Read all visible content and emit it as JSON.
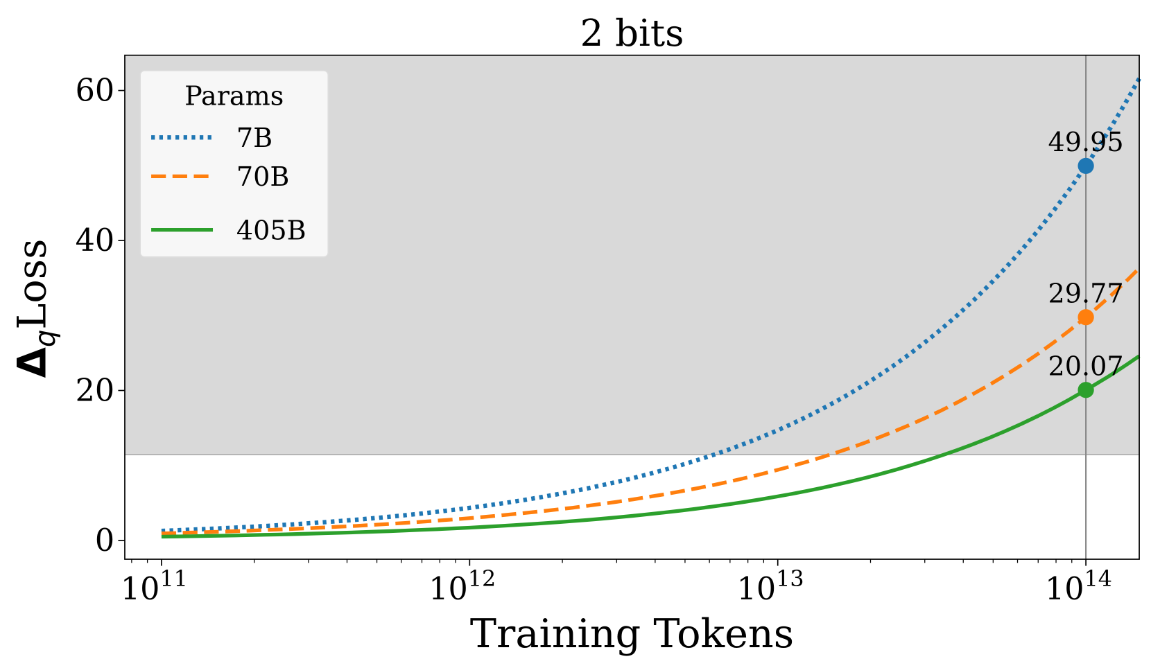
{
  "chart_data": {
    "type": "line",
    "title": "2 bits",
    "xlabel": "Training Tokens",
    "ylabel_main": "Loss",
    "ylabel_delta": "Δ",
    "ylabel_sub": "q",
    "x_scale": "log",
    "xlim": [
      76000000000.0,
      149000000000000.0
    ],
    "ylim": [
      -2.5,
      64.7
    ],
    "x_ticks": [
      100000000000.0,
      1000000000000.0,
      10000000000000.0,
      100000000000000.0
    ],
    "x_tick_labels": [
      {
        "base": "10",
        "exp": "11"
      },
      {
        "base": "10",
        "exp": "12"
      },
      {
        "base": "10",
        "exp": "13"
      },
      {
        "base": "10",
        "exp": "14"
      }
    ],
    "y_ticks": [
      0,
      20,
      40,
      60
    ],
    "y_tick_labels": [
      "0",
      "20",
      "40",
      "60"
    ],
    "grid": false,
    "shaded_region": {
      "y_from": 11.45,
      "color": "#d9d9d9"
    },
    "vertical_line_x": 100000000000000.0,
    "legend": {
      "title": "Params",
      "placement": "top-left"
    },
    "x": [
      100000000000.0,
      300000000000.0,
      1000000000000.0,
      3000000000000.0,
      10000000000000.0,
      30000000000000.0,
      100000000000000.0,
      149000000000000.0
    ],
    "series": [
      {
        "name": "7B",
        "color": "#1f77b4",
        "style": "dotted",
        "values": [
          1.28,
          2.29,
          4.35,
          7.8,
          14.7,
          26.4,
          49.95,
          61.6
        ]
      },
      {
        "name": "70B",
        "color": "#ff7f0e",
        "style": "dashed",
        "values": [
          0.94,
          1.63,
          2.98,
          5.15,
          9.41,
          16.3,
          29.77,
          36.3
        ]
      },
      {
        "name": "405B",
        "color": "#2ca02c",
        "style": "solid",
        "values": [
          0.5,
          0.9,
          1.71,
          3.08,
          5.87,
          10.6,
          20.07,
          24.6
        ]
      }
    ],
    "annotations": [
      {
        "x": 100000000000000.0,
        "y": 49.95,
        "text": "49.95",
        "color": "#1f77b4"
      },
      {
        "x": 100000000000000.0,
        "y": 29.77,
        "text": "29.77",
        "color": "#ff7f0e"
      },
      {
        "x": 100000000000000.0,
        "y": 20.07,
        "text": "20.07",
        "color": "#2ca02c"
      }
    ]
  }
}
